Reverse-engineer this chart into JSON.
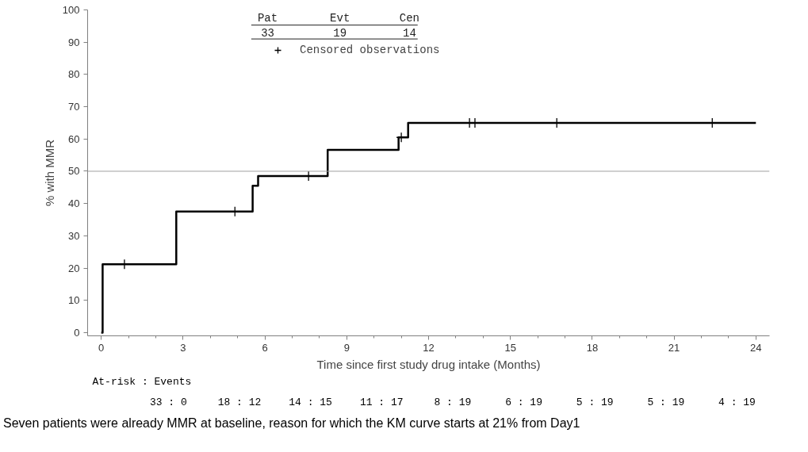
{
  "chart_data": {
    "type": "step",
    "xlabel": "Time since first study drug intake (Months)",
    "ylabel": "% with MMR",
    "xlim": [
      -0.5,
      24.5
    ],
    "xticks": [
      0,
      3,
      6,
      9,
      12,
      15,
      18,
      21,
      24
    ],
    "ylim": [
      -1,
      100
    ],
    "yticks": [
      0,
      10,
      20,
      30,
      40,
      50,
      60,
      70,
      80,
      90,
      100
    ],
    "grid": false,
    "legend": "top",
    "series": [
      {
        "color": "#000000",
        "x": [
          0,
          0.05,
          2.75,
          5.55,
          5.75,
          8.3,
          10.9,
          11.25,
          24
        ],
        "values": [
          0,
          21.2,
          37.5,
          45.5,
          48.5,
          56.6,
          60.5,
          65,
          65
        ]
      },
      {
        "type": "scatter",
        "name": "Censored observations",
        "marker": "cross",
        "color": "#000000",
        "x": [
          0.85,
          4.9,
          7.6,
          11.0,
          13.5,
          13.7,
          16.7,
          22.4
        ],
        "values": [
          21.2,
          37.5,
          48.5,
          60.5,
          65,
          65,
          65,
          65
        ]
      }
    ],
    "ref_lines": [
      {
        "axis": "y",
        "value": 50,
        "color": "#a0a0a0"
      }
    ],
    "annotations": [
      "Pat",
      "Evt",
      "Cen",
      "33",
      "19",
      "14",
      "At-risk : Events",
      "33 : 0",
      "18 : 12",
      "14 : 15",
      "11 : 17",
      "8 : 19",
      "6 : 19",
      "5 : 19",
      "5 : 19",
      "4 : 19",
      "Seven patients were already MMR at baseline, reason for which the KM curve starts at 21% from Day1"
    ]
  }
}
